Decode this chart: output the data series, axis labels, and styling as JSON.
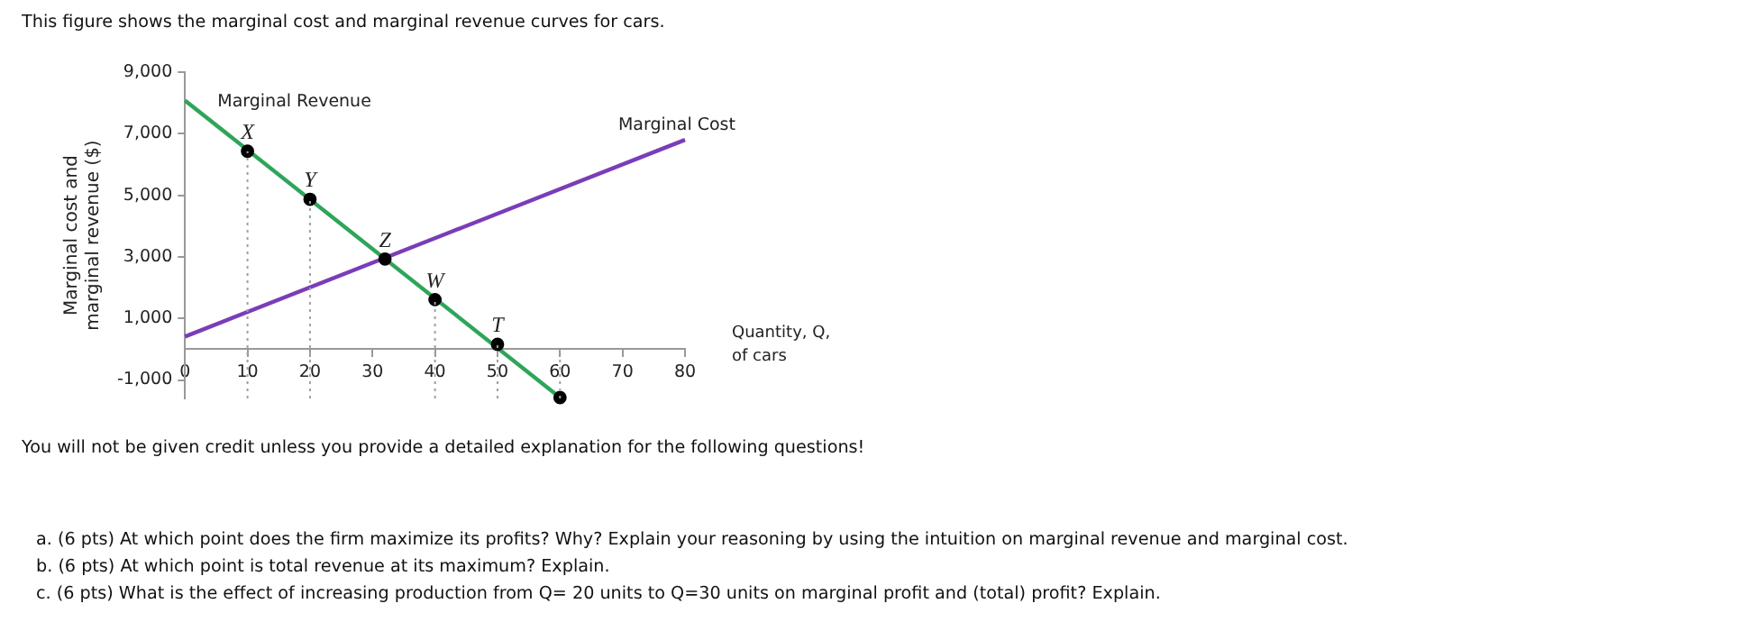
{
  "chart_data": {
    "type": "line",
    "title": "This figure shows the marginal cost and marginal revenue curves for cars.",
    "xlabel": "Quantity, Q, of cars",
    "ylabel": "Marginal cost and marginal revenue ($)",
    "xlim": [
      0,
      80
    ],
    "xticks": [
      0,
      10,
      20,
      30,
      40,
      50,
      60,
      70,
      80
    ],
    "ylim": [
      -1600,
      9000
    ],
    "yticks": [
      {
        "value": -1000,
        "label": "-1,000"
      },
      {
        "value": 1000,
        "label": "1,000"
      },
      {
        "value": 3000,
        "label": "3,000"
      },
      {
        "value": 5000,
        "label": "5,000"
      },
      {
        "value": 7000,
        "label": "7,000"
      },
      {
        "value": 9000,
        "label": "9,000"
      }
    ],
    "grid": false,
    "legend": false,
    "series": [
      {
        "name": "Marginal Revenue",
        "color": "#2ea55a",
        "x": [
          0,
          60
        ],
        "values": [
          8080,
          -1570
        ],
        "marker": "none"
      },
      {
        "name": "Marginal Cost",
        "color": "#7a3db8",
        "x": [
          0,
          80
        ],
        "values": [
          410,
          6800
        ],
        "marker": "none"
      },
      {
        "type": "scatter",
        "color": "#000000",
        "x": [
          10,
          20,
          32,
          40,
          50,
          60
        ],
        "values": [
          6430,
          4870,
          2930,
          1610,
          160,
          -1570
        ],
        "marker": "circle"
      }
    ],
    "ref_lines": [
      {
        "axis": "x",
        "value": 10,
        "color": "#a0a0a0",
        "line_style": "dotted"
      },
      {
        "axis": "x",
        "value": 20,
        "color": "#a0a0a0",
        "line_style": "dotted"
      },
      {
        "axis": "x",
        "value": 40,
        "color": "#a0a0a0",
        "line_style": "dotted"
      },
      {
        "axis": "x",
        "value": 50,
        "color": "#a0a0a0",
        "line_style": "dotted"
      },
      {
        "axis": "x",
        "value": 60,
        "color": "#a0a0a0",
        "line_style": "dotted"
      }
    ],
    "annotations": [
      {
        "text": "X",
        "x": 10,
        "y": 6430
      },
      {
        "text": "Y",
        "x": 20,
        "y": 4870
      },
      {
        "text": "Z",
        "x": 32,
        "y": 2930
      },
      {
        "text": "W",
        "x": 40,
        "y": 1610
      },
      {
        "text": "T",
        "x": 50,
        "y": 160
      },
      "You will not be given credit unless you provide a detailed explanation for the following questions!",
      "a. (6 pts)  At which point does the firm maximize its profits? Why? Explain your reasoning by using the intuition on marginal revenue and marginal cost.",
      "b. (6 pts)  At which point is total revenue at its maximum? Explain.",
      "c. (6 pts) What is the effect of increasing production from Q= 20 units  to Q=30 units on marginal profit and (total) profit? Explain."
    ]
  }
}
